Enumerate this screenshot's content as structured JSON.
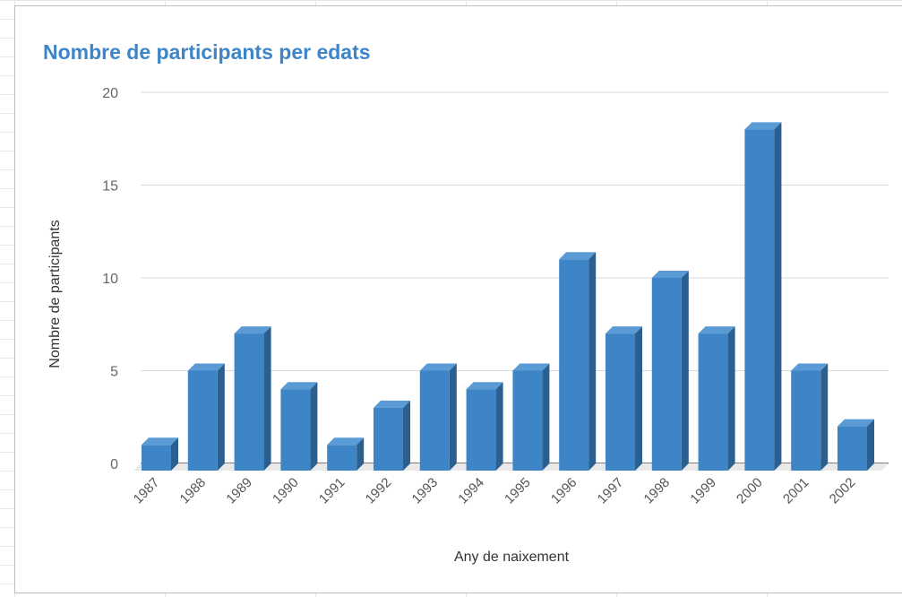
{
  "chart_data": {
    "type": "bar",
    "title": "Nombre de participants per edats",
    "xlabel": "Any de naixement",
    "ylabel": "Nombre de participants",
    "categories": [
      "1987",
      "1988",
      "1989",
      "1990",
      "1991",
      "1992",
      "1993",
      "1994",
      "1995",
      "1996",
      "1997",
      "1998",
      "1999",
      "2000",
      "2001",
      "2002"
    ],
    "values": [
      1,
      5,
      7,
      4,
      1,
      3,
      5,
      4,
      5,
      11,
      7,
      10,
      7,
      18,
      5,
      2
    ],
    "ylim": [
      0,
      20
    ],
    "yticks": [
      "0",
      "5",
      "10",
      "15",
      "20"
    ],
    "grid": true,
    "legend": "none",
    "style": "3d",
    "colors": {
      "title": "#3d85c6",
      "bar_front": "#3d85c6",
      "bar_top": "#5b9bd5",
      "bar_side": "#2a5f8f",
      "floor": "#e9e9e9",
      "gridline": "#d9d9d9"
    }
  }
}
